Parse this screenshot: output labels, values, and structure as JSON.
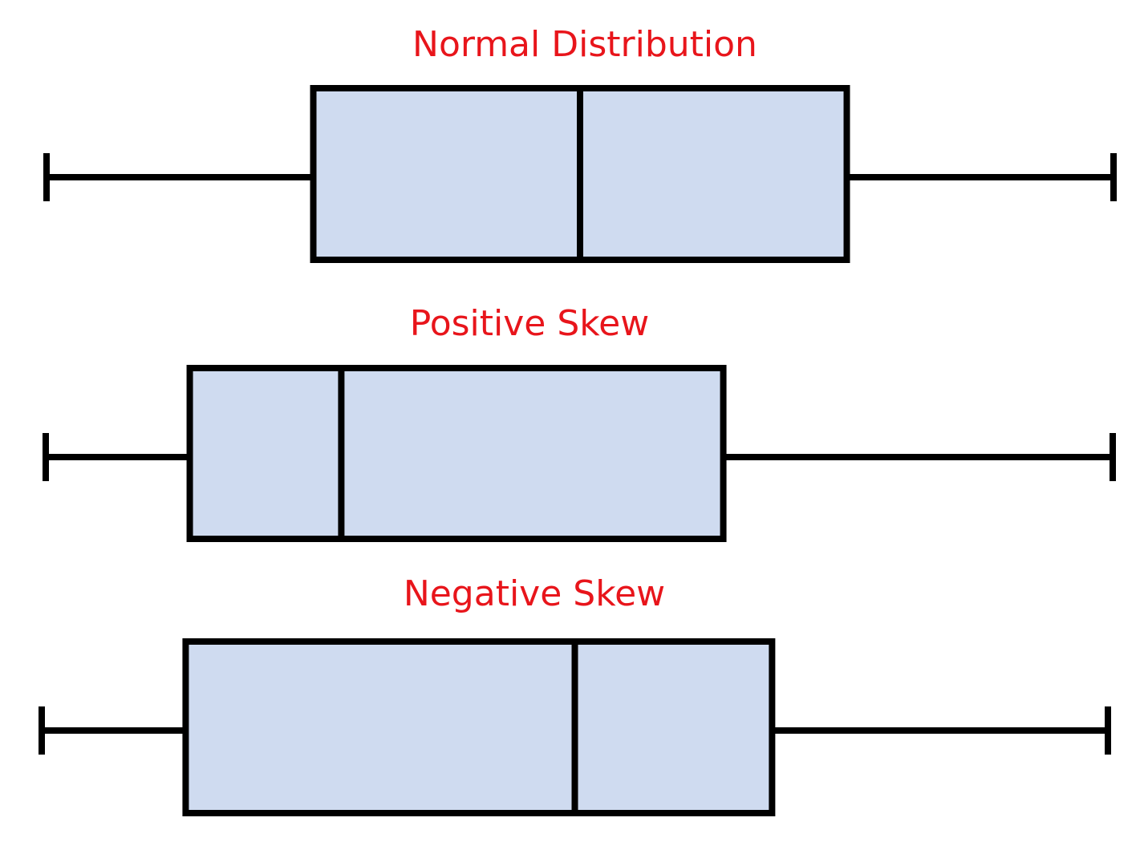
{
  "colors": {
    "title": "#e8151b",
    "box_fill": "#cfdbf0",
    "stroke": "#000000",
    "background": "#ffffff"
  },
  "plots": [
    {
      "title": "Normal Distribution",
      "shape": "symmetric",
      "summary": {
        "min": 0.0,
        "q1": 0.25,
        "median": 0.5,
        "q3": 0.75,
        "max": 1.0
      }
    },
    {
      "title": "Positive Skew",
      "shape": "right-skewed",
      "summary": {
        "min": 0.0,
        "q1": 0.135,
        "median": 0.277,
        "q3": 0.635,
        "max": 1.0
      }
    },
    {
      "title": "Negative Skew",
      "shape": "left-skewed",
      "summary": {
        "min": 0.0,
        "q1": 0.135,
        "median": 0.5,
        "q3": 0.685,
        "max": 1.0
      }
    }
  ]
}
